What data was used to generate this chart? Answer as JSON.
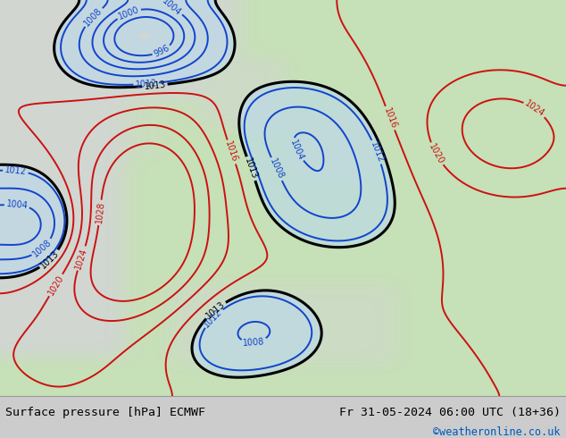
{
  "title_left": "Surface pressure [hPa] ECMWF",
  "title_right": "Fr 31-05-2024 06:00 UTC (18+36)",
  "credit": "©weatheronline.co.uk",
  "credit_color": "#0055bb",
  "bg_land_color": [
    0.78,
    0.88,
    0.72,
    1.0
  ],
  "bg_sea_color": [
    0.82,
    0.84,
    0.82,
    1.0
  ],
  "bg_sea_light": [
    0.9,
    0.92,
    0.9,
    1.0
  ],
  "fig_width": 6.34,
  "fig_height": 4.9,
  "dpi": 100,
  "bottom_bar_color": "#cccccc",
  "title_fontsize": 9.5,
  "credit_fontsize": 8.5,
  "blue_levels": [
    996,
    1000,
    1004,
    1008,
    1012
  ],
  "red_levels": [
    1016,
    1020,
    1024,
    1028
  ],
  "black_levels": [
    1013
  ],
  "black_levels2": [
    1013
  ],
  "label_fontsize": 7
}
